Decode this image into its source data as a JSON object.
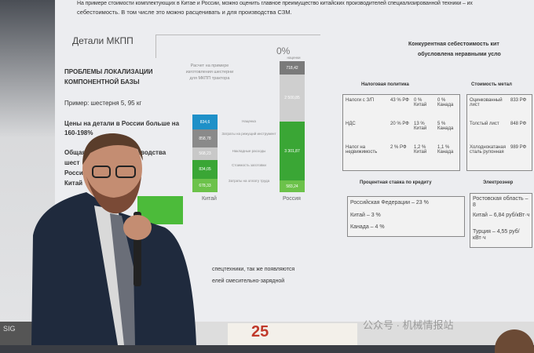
{
  "slide": {
    "intro_line1": "На примере стоимости комплектующих в Китае и России, можно оценить главное преимущество китайских производителей специализированной техники – их",
    "intro_line2": "себестоимость. В том числе это можно расценивать и для производства СЗМ.",
    "title": "Детали МКПП",
    "heading_line1": "ПРОБЛЕМЫ ЛОКАЛИЗАЦИИ",
    "heading_line2": "КОМПОНЕНТНОЙ БАЗЫ",
    "example": "Пример: шестерня 5, 95 кг",
    "prices_line1": "Цены на детали в России больше на",
    "prices_line2": "160-198%",
    "total_line1": "Общая стоимость производства",
    "total_line2": "шест",
    "total_line3": "Росси",
    "total_line4": "Китай",
    "bottom_line1": "спецтехники, так же появляются",
    "bottom_line2": "елей смесительно-зарядной"
  },
  "chart_data": {
    "type": "bar",
    "note": "Расчет на примере изготовления шестерни для МКПП трактора",
    "markup_note_value": "0%",
    "markup_note_label": "наценки",
    "categories": [
      "Китай",
      "Россия"
    ],
    "segment_labels": [
      "Наценка",
      "Затраты на режущий инструмент",
      "Накладные расходы",
      "Стоимость заготовки",
      "Затраты на оплату труда"
    ],
    "series": [
      {
        "category": "Китай",
        "values": [
          {
            "label": "Наценка",
            "value": "834,6",
            "color": "#1e90c8"
          },
          {
            "label": "Затраты на режущий инструмент",
            "value": "858,78",
            "color": "#8a8a8a"
          },
          {
            "label": "Накладные расходы",
            "value": "568,23",
            "color": "#c8c8c8"
          },
          {
            "label": "Стоимость заготовки",
            "value": "834,05",
            "color": "#3aa635"
          },
          {
            "label": "Затраты на оплату труда",
            "value": "678,33",
            "color": "#6cc24a"
          }
        ]
      },
      {
        "category": "Россия",
        "values": [
          {
            "label": "Затраты на режущий инструмент",
            "value": "718,42",
            "color": "#7a7a7a"
          },
          {
            "label": "Накладные расходы",
            "value": "2 500,85",
            "color": "#cfcfcf"
          },
          {
            "label": "Стоимость заготовки",
            "value": "3 301,87",
            "color": "#3aa635"
          },
          {
            "label": "Затраты на оплату труда",
            "value": "583,24",
            "color": "#6cc24a"
          }
        ]
      }
    ]
  },
  "right": {
    "title_line1": "Конкурентная себестоимость кит",
    "title_line2": "обусловлена неравными усло",
    "tax": {
      "heading": "Налоговая политика",
      "rows": [
        {
          "name": "Налоги с З/П",
          "c1": "43 % РФ",
          "c2": "0 % Китай",
          "c3": "0 % Канада"
        },
        {
          "name": "НДС",
          "c1": "20 % РФ",
          "c2": "13 % Китай",
          "c3": "5 % Канада"
        },
        {
          "name": "Налог на недвижимость",
          "c1": "2 % РФ",
          "c2": "1,2 % Китай",
          "c3": "1,1 % Канада"
        }
      ]
    },
    "metal": {
      "heading": "Стоимость метал",
      "rows": [
        {
          "name": "Оцинкованный лист",
          "v": "833 РФ"
        },
        {
          "name": "Толстый лист",
          "v": "848 РФ"
        },
        {
          "name": "Холоднокатаная сталь рулонная",
          "v": "989 РФ"
        }
      ]
    },
    "credit": {
      "heading": "Процентная ставка по кредиту",
      "rows": [
        "Российская Федерации – 23 %",
        "Китай – 3 %",
        "Канада – 4 %"
      ]
    },
    "power": {
      "heading": "Электроэнер",
      "rows": [
        "Ростовская область – 8",
        "Китай – 6,84 руб/кВт·ч",
        "Турция – 4,55 руб/кВт·ч"
      ]
    }
  },
  "watermark": "公众号 · 机械情报站",
  "banner": "SIG",
  "podium": "25"
}
